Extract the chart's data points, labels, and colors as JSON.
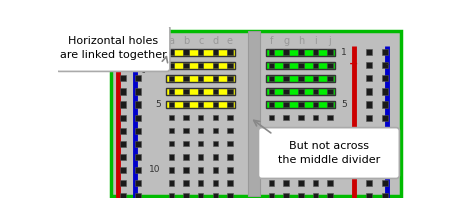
{
  "bg_outer": "#ffffff",
  "bg_board": "#c0c0c0",
  "bg_inner": "#c8c8c8",
  "green_border": "#00bb00",
  "callout1_text": "Horizontal holes\nare linked together",
  "callout2_text": "But not across\nthe middle divider",
  "col_labels_left": [
    "a",
    "b",
    "c",
    "d",
    "e"
  ],
  "col_labels_right": [
    "f",
    "g",
    "h",
    "i",
    "j"
  ],
  "yellow_color": "#ffff00",
  "green_color": "#00ee00",
  "black_hole": "#1a1a1a",
  "red_line": "#cc0000",
  "blue_line": "#0000cc",
  "plus_color": "#cc0000",
  "minus_color": "#333333",
  "label_color": "#999999",
  "row_label_color": "#333333",
  "board_bg": "#bebebe",
  "left_bg": "#b8b8b8",
  "divider_color": "#aaaaaa",
  "hole_border": "#555555",
  "bar_border": "#333333"
}
